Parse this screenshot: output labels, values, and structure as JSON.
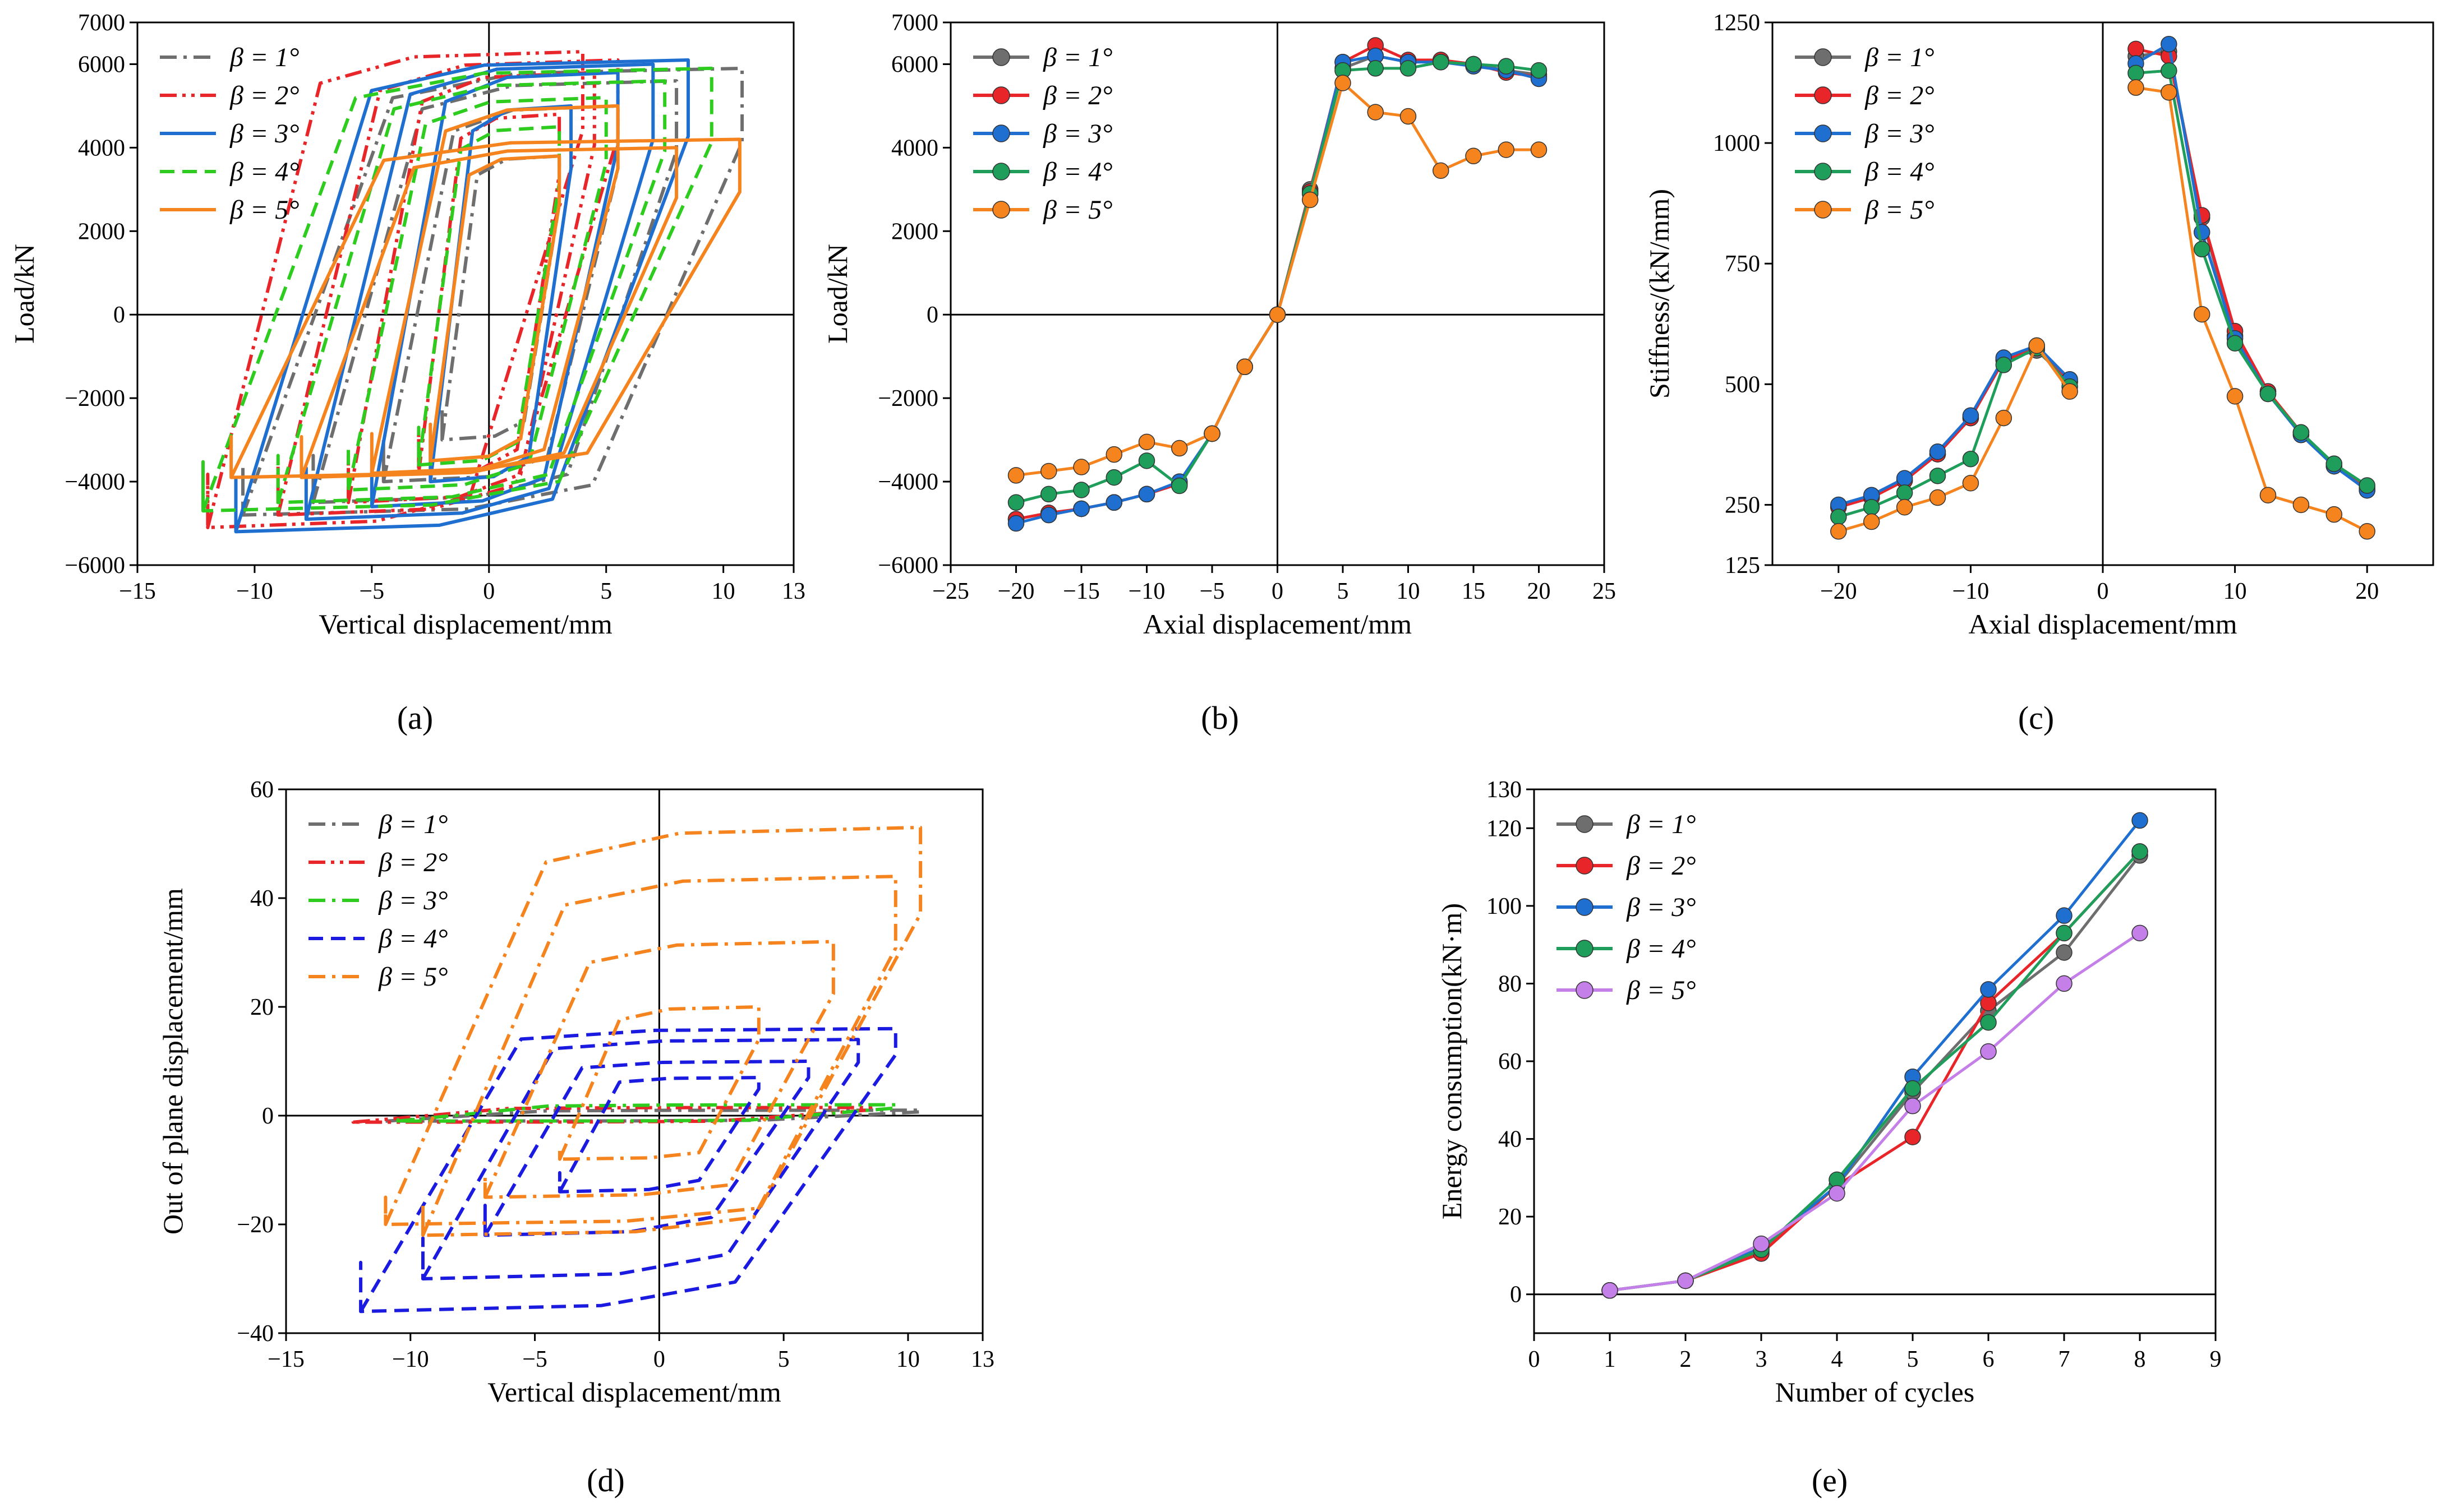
{
  "figure": {
    "panel_labels": [
      "(a)",
      "(b)",
      "(c)",
      "(d)",
      "(e)"
    ]
  },
  "chart_data": [
    {
      "id": "a",
      "type": "line",
      "subtype": "hysteresis",
      "panel_label": "(a)",
      "xlabel": "Vertical displacement/mm",
      "ylabel": "Load/kN",
      "xlim": [
        -15,
        13
      ],
      "ylim": [
        -6000,
        7000
      ],
      "xticks": [
        -15,
        -10,
        -5,
        0,
        5,
        10,
        13
      ],
      "xticklabels": [
        "−15",
        "−10",
        "−5",
        "0",
        "5",
        "10",
        "13"
      ],
      "yticks": [
        -6000,
        -4000,
        -2000,
        0,
        2000,
        4000,
        6000,
        7000
      ],
      "yticklabels": [
        "−6000",
        "−4000",
        "−2000",
        "0",
        "2000",
        "4000",
        "6000",
        "7000"
      ],
      "legend_position": "top-left",
      "series": [
        {
          "name": "β = 1°",
          "color": "#6e6e6e",
          "dash": "dashdot",
          "loops": [
            {
              "xr": [
                -10.5,
                10.8
              ],
              "yr": [
                -4800,
                5900
              ]
            },
            {
              "xr": [
                -7.5,
                8.0
              ],
              "yr": [
                -4500,
                5600
              ]
            },
            {
              "xr": [
                -4.5,
                5.5
              ],
              "yr": [
                -4000,
                5000
              ]
            },
            {
              "xr": [
                -2.0,
                3.0
              ],
              "yr": [
                -3000,
                3800
              ]
            }
          ]
        },
        {
          "name": "β = 2°",
          "color": "#e8262a",
          "dash": "dashdotdot",
          "loops": [
            {
              "xr": [
                -12.0,
                4.0
              ],
              "yr": [
                -5100,
                6300
              ]
            },
            {
              "xr": [
                -9.0,
                5.5
              ],
              "yr": [
                -4800,
                6100
              ]
            },
            {
              "xr": [
                -6.0,
                4.5
              ],
              "yr": [
                -4500,
                5800
              ]
            },
            {
              "xr": [
                -3.0,
                3.0
              ],
              "yr": [
                -3800,
                4800
              ]
            }
          ]
        },
        {
          "name": "β = 3°",
          "color": "#1f6fd0",
          "dash": "solid",
          "loops": [
            {
              "xr": [
                -10.8,
                8.5
              ],
              "yr": [
                -5200,
                6100
              ]
            },
            {
              "xr": [
                -7.8,
                7.0
              ],
              "yr": [
                -4900,
                6000
              ]
            },
            {
              "xr": [
                -5.0,
                5.5
              ],
              "yr": [
                -4600,
                5800
              ]
            },
            {
              "xr": [
                -2.5,
                3.5
              ],
              "yr": [
                -4000,
                5000
              ]
            }
          ]
        },
        {
          "name": "β = 4°",
          "color": "#2ecc1f",
          "dash": "dashed",
          "loops": [
            {
              "xr": [
                -12.2,
                9.5
              ],
              "yr": [
                -4700,
                5900
              ]
            },
            {
              "xr": [
                -9.0,
                7.5
              ],
              "yr": [
                -4500,
                5600
              ]
            },
            {
              "xr": [
                -6.0,
                5.0
              ],
              "yr": [
                -4200,
                5200
              ]
            },
            {
              "xr": [
                -3.0,
                3.0
              ],
              "yr": [
                -3600,
                4500
              ]
            }
          ]
        },
        {
          "name": "β = 5°",
          "color": "#f5841f",
          "dash": "solid",
          "loops": [
            {
              "xr": [
                -11.0,
                10.7
              ],
              "yr": [
                -3900,
                4200
              ]
            },
            {
              "xr": [
                -8.0,
                8.0
              ],
              "yr": [
                -3900,
                4000
              ]
            },
            {
              "xr": [
                -5.0,
                5.5
              ],
              "yr": [
                -3800,
                5000
              ]
            },
            {
              "xr": [
                -2.5,
                3.0
              ],
              "yr": [
                -3500,
                3800
              ]
            }
          ]
        }
      ]
    },
    {
      "id": "b",
      "type": "line",
      "panel_label": "(b)",
      "xlabel": "Axial displacement/mm",
      "ylabel": "Load/kN",
      "xlim": [
        -25,
        25
      ],
      "ylim": [
        -6000,
        7000
      ],
      "xticks": [
        -25,
        -20,
        -15,
        -10,
        -5,
        0,
        5,
        10,
        15,
        20,
        25
      ],
      "xticklabels": [
        "−25",
        "−20",
        "−15",
        "−10",
        "−5",
        "0",
        "5",
        "10",
        "15",
        "20",
        "25"
      ],
      "yticks": [
        -6000,
        -4000,
        -2000,
        0,
        2000,
        4000,
        6000,
        7000
      ],
      "yticklabels": [
        "−6000",
        "−4000",
        "−2000",
        "0",
        "2000",
        "4000",
        "6000",
        "7000"
      ],
      "legend_position": "top-left",
      "x": [
        -20,
        -17.5,
        -15,
        -12.5,
        -10,
        -7.5,
        -5,
        -2.5,
        0,
        2.5,
        5,
        7.5,
        10,
        12.5,
        15,
        17.5,
        20
      ],
      "series": [
        {
          "name": "β = 1°",
          "color": "#6e6e6e",
          "values": [
            -4900,
            -4750,
            -4650,
            -4500,
            -4300,
            -4050,
            -2850,
            -1250,
            0,
            3000,
            5900,
            6200,
            6050,
            6100,
            6000,
            5850,
            5750
          ]
        },
        {
          "name": "β = 2°",
          "color": "#e8262a",
          "values": [
            -4900,
            -4750,
            -4650,
            -4500,
            -4300,
            -4050,
            -2850,
            -1250,
            0,
            2950,
            6050,
            6450,
            6100,
            6100,
            6000,
            5800,
            5700
          ]
        },
        {
          "name": "β = 3°",
          "color": "#1f6fd0",
          "values": [
            -5000,
            -4800,
            -4650,
            -4500,
            -4300,
            -4000,
            -2850,
            -1250,
            0,
            2900,
            6050,
            6200,
            6050,
            6050,
            5950,
            5850,
            5650
          ]
        },
        {
          "name": "β = 4°",
          "color": "#1e9e5a",
          "values": [
            -4500,
            -4300,
            -4200,
            -3900,
            -3500,
            -4100,
            -2850,
            -1250,
            0,
            2900,
            5850,
            5900,
            5900,
            6050,
            6000,
            5950,
            5850
          ]
        },
        {
          "name": "β = 5°",
          "color": "#f5841f",
          "values": [
            -3850,
            -3750,
            -3650,
            -3350,
            -3050,
            -3200,
            -2850,
            -1250,
            0,
            2750,
            5550,
            4850,
            4750,
            3450,
            3800,
            3950,
            3950
          ]
        }
      ]
    },
    {
      "id": "c",
      "type": "line",
      "panel_label": "(c)",
      "xlabel": "Axial displacement/mm",
      "ylabel": "Stiffness/(kN/mm)",
      "xlim": [
        -25,
        25
      ],
      "ylim": [
        125,
        1250
      ],
      "xticks": [
        -20,
        -10,
        0,
        10,
        20
      ],
      "xticklabels": [
        "−20",
        "−10",
        "0",
        "10",
        "20"
      ],
      "yticks": [
        125,
        250,
        500,
        750,
        1000,
        1250
      ],
      "yticklabels": [
        "125",
        "250",
        "500",
        "750",
        "1000",
        "1250"
      ],
      "legend_position": "top-left",
      "x_neg": [
        -20,
        -17.5,
        -15,
        -12.5,
        -10,
        -7.5,
        -5,
        -2.5
      ],
      "x_pos": [
        2.5,
        5,
        7.5,
        10,
        12.5,
        15,
        17.5,
        20
      ],
      "series": [
        {
          "name": "β = 1°",
          "color": "#6e6e6e",
          "neg": [
            245,
            265,
            300,
            355,
            430,
            550,
            570,
            505
          ],
          "pos": [
            1180,
            1190,
            845,
            600,
            485,
            395,
            335,
            280
          ]
        },
        {
          "name": "β = 2°",
          "color": "#e8262a",
          "neg": [
            245,
            265,
            300,
            355,
            430,
            550,
            575,
            505
          ],
          "pos": [
            1195,
            1180,
            850,
            610,
            485,
            400,
            330,
            285
          ]
        },
        {
          "name": "β = 3°",
          "color": "#1f6fd0",
          "neg": [
            250,
            270,
            305,
            360,
            435,
            555,
            580,
            510
          ],
          "pos": [
            1165,
            1205,
            815,
            595,
            480,
            395,
            330,
            280
          ]
        },
        {
          "name": "β = 4°",
          "color": "#1e9e5a",
          "neg": [
            225,
            245,
            275,
            310,
            345,
            540,
            575,
            495
          ],
          "pos": [
            1145,
            1150,
            780,
            585,
            480,
            400,
            335,
            290
          ]
        },
        {
          "name": "β = 5°",
          "color": "#f5841f",
          "neg": [
            195,
            215,
            245,
            265,
            295,
            430,
            580,
            485
          ],
          "pos": [
            1115,
            1105,
            645,
            475,
            270,
            250,
            230,
            195
          ]
        }
      ]
    },
    {
      "id": "d",
      "type": "line",
      "subtype": "hysteresis",
      "panel_label": "(d)",
      "xlabel": "Vertical displacement/mm",
      "ylabel": "Out of plane displacement/mm",
      "xlim": [
        -15,
        13
      ],
      "ylim": [
        -40,
        60
      ],
      "xticks": [
        -15,
        -10,
        -5,
        0,
        5,
        10,
        13
      ],
      "xticklabels": [
        "−15",
        "−10",
        "−5",
        "0",
        "5",
        "10",
        "13"
      ],
      "yticks": [
        -40,
        -20,
        0,
        20,
        40,
        60
      ],
      "yticklabels": [
        "−40",
        "−20",
        "0",
        "20",
        "40",
        "60"
      ],
      "legend_position": "top-left",
      "series": [
        {
          "name": "β = 1°",
          "color": "#6e6e6e",
          "dash": "dashdot",
          "loops": [
            {
              "xr": [
                -11,
                10.5
              ],
              "yr": [
                -1,
                1
              ]
            }
          ]
        },
        {
          "name": "β = 2°",
          "color": "#e8262a",
          "dash": "dashdotdot",
          "loops": [
            {
              "xr": [
                -12.3,
                8.5
              ],
              "yr": [
                -1.2,
                1.5
              ]
            }
          ]
        },
        {
          "name": "β = 3°",
          "color": "#2ecc1f",
          "dash": "dashdot",
          "loops": [
            {
              "xr": [
                -10.5,
                9.5
              ],
              "yr": [
                -1,
                2
              ]
            }
          ]
        },
        {
          "name": "β = 4°",
          "color": "#1a1ae0",
          "dash": "dashed",
          "loops": [
            {
              "xr": [
                -12,
                9.5
              ],
              "yr": [
                -36,
                16
              ]
            },
            {
              "xr": [
                -9.5,
                8
              ],
              "yr": [
                -30,
                14
              ]
            },
            {
              "xr": [
                -7,
                6
              ],
              "yr": [
                -22,
                10
              ]
            },
            {
              "xr": [
                -4,
                4
              ],
              "yr": [
                -14,
                7
              ]
            }
          ]
        },
        {
          "name": "β = 5°",
          "color": "#f5841f",
          "dash": "dashdot",
          "loops": [
            {
              "xr": [
                -11,
                10.5
              ],
              "yr": [
                -20,
                53
              ]
            },
            {
              "xr": [
                -9.5,
                9.5
              ],
              "yr": [
                -22,
                44
              ]
            },
            {
              "xr": [
                -7,
                7
              ],
              "yr": [
                -15,
                32
              ]
            },
            {
              "xr": [
                -4,
                4
              ],
              "yr": [
                -8,
                20
              ]
            }
          ]
        }
      ]
    },
    {
      "id": "e",
      "type": "line",
      "panel_label": "(e)",
      "xlabel": "Number of cycles",
      "ylabel": "Energy consumption(kN·m)",
      "xlim": [
        0,
        9
      ],
      "ylim": [
        -10,
        130
      ],
      "xticks": [
        0,
        1,
        2,
        3,
        4,
        5,
        6,
        7,
        8,
        9
      ],
      "xticklabels": [
        "0",
        "1",
        "2",
        "3",
        "4",
        "5",
        "6",
        "7",
        "8",
        "9"
      ],
      "yticks": [
        0,
        20,
        40,
        60,
        80,
        100,
        120,
        130
      ],
      "yticklabels": [
        "0",
        "20",
        "40",
        "60",
        "80",
        "100",
        "120",
        "130"
      ],
      "legend_position": "top-left",
      "x": [
        1,
        2,
        3,
        4,
        5,
        6,
        7,
        8
      ],
      "series": [
        {
          "name": "β = 1°",
          "color": "#6e6e6e",
          "values": [
            1,
            3.5,
            11,
            28,
            52,
            73,
            88,
            113
          ]
        },
        {
          "name": "β = 2°",
          "color": "#e8262a",
          "values": [
            1,
            3.5,
            10.5,
            28,
            40.5,
            75,
            93,
            114
          ]
        },
        {
          "name": "β = 3°",
          "color": "#1f6fd0",
          "values": [
            1,
            3.5,
            12,
            28,
            56,
            78.5,
            97.5,
            122
          ]
        },
        {
          "name": "β = 4°",
          "color": "#1e9e5a",
          "values": [
            1,
            3.5,
            11.5,
            29.5,
            53,
            70,
            93,
            114
          ]
        },
        {
          "name": "β = 5°",
          "color": "#c47fe8",
          "values": [
            1,
            3.5,
            13,
            26,
            48.5,
            62.5,
            80,
            93
          ]
        }
      ]
    }
  ]
}
